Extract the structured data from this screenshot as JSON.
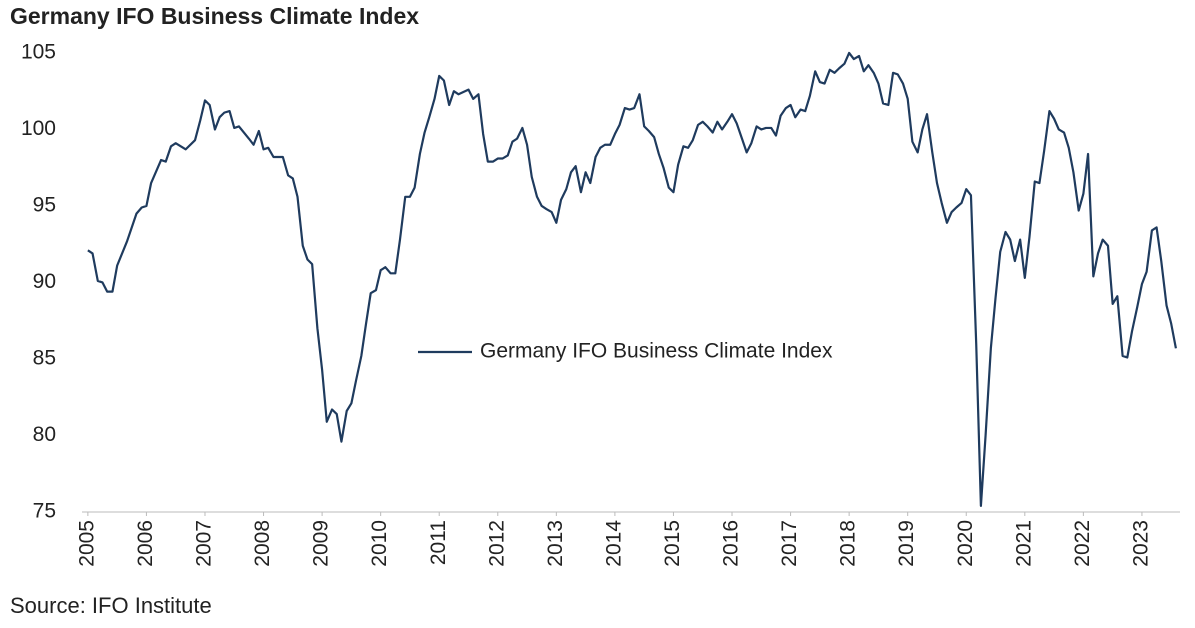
{
  "chart_data": {
    "type": "line",
    "title": "Germany IFO Business Climate Index",
    "source": "Source: IFO Institute",
    "legend": "center",
    "grid": false,
    "xlim": [
      2004.9,
      2023.65
    ],
    "xticks": [
      2005,
      2006,
      2007,
      2008,
      2009,
      2010,
      2011,
      2012,
      2013,
      2014,
      2015,
      2016,
      2017,
      2018,
      2019,
      2020,
      2021,
      2022,
      2023
    ],
    "ylim": [
      75,
      106.5
    ],
    "yticks": [
      75,
      80,
      85,
      90,
      95,
      100,
      105
    ],
    "series": [
      {
        "name": "Germany IFO Business Climate Index",
        "color": "#1f3b5e",
        "x": [
          2005.0,
          2005.08,
          2005.17,
          2005.25,
          2005.33,
          2005.42,
          2005.5,
          2005.67,
          2005.83,
          2005.92,
          2006.0,
          2006.08,
          2006.25,
          2006.33,
          2006.42,
          2006.5,
          2006.67,
          2006.83,
          2006.92,
          2007.0,
          2007.08,
          2007.17,
          2007.25,
          2007.33,
          2007.42,
          2007.5,
          2007.58,
          2007.75,
          2007.83,
          2007.92,
          2008.0,
          2008.08,
          2008.17,
          2008.33,
          2008.42,
          2008.5,
          2008.58,
          2008.67,
          2008.75,
          2008.83,
          2008.92,
          2009.0,
          2009.08,
          2009.17,
          2009.25,
          2009.33,
          2009.42,
          2009.5,
          2009.58,
          2009.67,
          2009.75,
          2009.83,
          2009.92,
          2010.0,
          2010.08,
          2010.17,
          2010.25,
          2010.33,
          2010.42,
          2010.5,
          2010.58,
          2010.67,
          2010.75,
          2010.83,
          2010.92,
          2011.0,
          2011.08,
          2011.17,
          2011.25,
          2011.33,
          2011.5,
          2011.58,
          2011.67,
          2011.75,
          2011.83,
          2011.92,
          2012.0,
          2012.08,
          2012.17,
          2012.25,
          2012.33,
          2012.42,
          2012.5,
          2012.58,
          2012.67,
          2012.75,
          2012.83,
          2012.92,
          2013.0,
          2013.08,
          2013.17,
          2013.25,
          2013.33,
          2013.42,
          2013.5,
          2013.58,
          2013.67,
          2013.75,
          2013.83,
          2013.92,
          2014.0,
          2014.08,
          2014.17,
          2014.25,
          2014.33,
          2014.42,
          2014.5,
          2014.58,
          2014.67,
          2014.75,
          2014.83,
          2014.92,
          2015.0,
          2015.08,
          2015.17,
          2015.25,
          2015.33,
          2015.42,
          2015.5,
          2015.58,
          2015.67,
          2015.75,
          2015.83,
          2015.92,
          2016.0,
          2016.08,
          2016.17,
          2016.25,
          2016.33,
          2016.42,
          2016.5,
          2016.58,
          2016.67,
          2016.75,
          2016.83,
          2016.92,
          2017.0,
          2017.08,
          2017.17,
          2017.25,
          2017.33,
          2017.42,
          2017.5,
          2017.58,
          2017.67,
          2017.75,
          2017.83,
          2017.92,
          2018.0,
          2018.08,
          2018.17,
          2018.25,
          2018.33,
          2018.42,
          2018.5,
          2018.58,
          2018.67,
          2018.75,
          2018.83,
          2018.92,
          2019.0,
          2019.08,
          2019.17,
          2019.25,
          2019.33,
          2019.42,
          2019.5,
          2019.58,
          2019.67,
          2019.75,
          2019.83,
          2019.92,
          2020.0,
          2020.08,
          2020.17,
          2020.25,
          2020.33,
          2020.42,
          2020.5,
          2020.58,
          2020.67,
          2020.75,
          2020.83,
          2020.92,
          2021.0,
          2021.08,
          2021.17,
          2021.25,
          2021.33,
          2021.42,
          2021.5,
          2021.58,
          2021.67,
          2021.75,
          2021.83,
          2021.92,
          2022.0,
          2022.08,
          2022.17,
          2022.25,
          2022.33,
          2022.42,
          2022.5,
          2022.58,
          2022.67,
          2022.75,
          2022.83,
          2022.92,
          2023.0,
          2023.08,
          2023.17,
          2023.25,
          2023.33,
          2023.42,
          2023.5,
          2023.58
        ],
        "values": [
          92.1,
          91.9,
          90.1,
          90.0,
          89.4,
          89.4,
          91.1,
          92.7,
          94.5,
          94.9,
          95.0,
          96.5,
          98.0,
          97.9,
          98.9,
          99.1,
          98.7,
          99.3,
          100.6,
          101.9,
          101.6,
          100.0,
          100.8,
          101.1,
          101.2,
          100.1,
          100.2,
          99.4,
          99.0,
          99.9,
          98.7,
          98.8,
          98.2,
          98.2,
          97.0,
          96.8,
          95.6,
          92.4,
          91.5,
          91.2,
          87.0,
          84.3,
          80.9,
          81.7,
          81.4,
          79.6,
          81.6,
          82.1,
          83.6,
          85.2,
          87.3,
          89.3,
          89.5,
          90.8,
          91.0,
          90.6,
          90.6,
          92.8,
          95.6,
          95.6,
          96.2,
          98.4,
          99.8,
          100.8,
          102.0,
          103.5,
          103.2,
          101.6,
          102.5,
          102.3,
          102.6,
          102.0,
          102.3,
          99.7,
          97.9,
          97.9,
          98.1,
          98.1,
          98.3,
          99.2,
          99.4,
          100.1,
          99.0,
          96.9,
          95.6,
          95.0,
          94.8,
          94.6,
          93.9,
          95.4,
          96.1,
          97.2,
          97.6,
          95.9,
          97.2,
          96.5,
          98.2,
          98.8,
          99.0,
          99.0,
          99.7,
          100.3,
          101.4,
          101.3,
          101.4,
          102.3,
          100.2,
          99.9,
          99.5,
          98.4,
          97.5,
          96.2,
          95.9,
          97.7,
          98.9,
          98.8,
          99.3,
          100.3,
          100.5,
          100.2,
          99.8,
          100.5,
          100.0,
          100.5,
          101.0,
          100.4,
          99.4,
          98.5,
          99.1,
          100.2,
          100.0,
          100.1,
          100.1,
          99.6,
          100.9,
          101.4,
          101.6,
          100.8,
          101.3,
          101.2,
          102.2,
          103.8,
          103.1,
          103.0,
          103.9,
          103.7,
          104.0,
          104.3,
          105.0,
          104.6,
          104.8,
          103.8,
          104.2,
          103.7,
          103.0,
          101.7,
          101.6,
          103.7,
          103.6,
          103.0,
          102.0,
          99.2,
          98.5,
          100.0,
          101.0,
          98.5,
          96.5,
          95.2,
          93.9,
          94.6,
          94.9,
          95.2,
          96.1,
          95.7,
          86.0,
          75.4,
          80.0,
          85.7,
          89.0,
          92.0,
          93.3,
          92.8,
          91.4,
          92.8,
          90.3,
          93.0,
          96.6,
          96.5,
          98.6,
          101.2,
          100.7,
          100.0,
          99.8,
          98.8,
          97.2,
          94.7,
          95.8,
          98.4,
          90.4,
          91.9,
          92.8,
          92.4,
          88.6,
          89.1,
          85.2,
          85.1,
          86.8,
          88.4,
          89.9,
          90.7,
          93.4,
          93.6,
          91.4,
          88.5,
          87.3,
          85.7
        ]
      }
    ]
  }
}
